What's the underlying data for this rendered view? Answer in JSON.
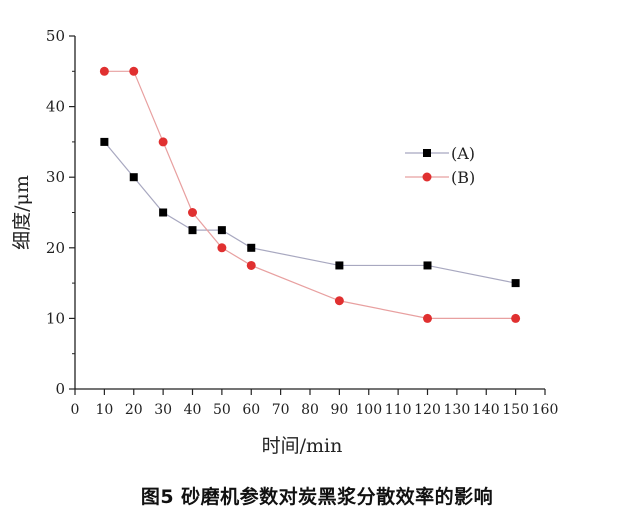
{
  "chart_data": {
    "type": "line",
    "xlabel": "时间/min",
    "ylabel": "细度/μm",
    "xlim": [
      0,
      160
    ],
    "ylim": [
      0,
      50
    ],
    "xticks": [
      0,
      10,
      20,
      30,
      40,
      50,
      60,
      70,
      80,
      90,
      100,
      110,
      120,
      130,
      140,
      150,
      160
    ],
    "yticks": [
      0,
      10,
      20,
      30,
      40,
      50
    ],
    "grid": false,
    "legend_position": "right",
    "series": [
      {
        "name": "(A)",
        "color": "#000000",
        "line_color": "#a8a8c0",
        "marker": "square",
        "x": [
          10,
          20,
          30,
          40,
          50,
          60,
          90,
          120,
          150
        ],
        "y": [
          35,
          30,
          25,
          22.5,
          22.5,
          20,
          17.5,
          17.5,
          15
        ]
      },
      {
        "name": "(B)",
        "color": "#e03030",
        "line_color": "#e8a0a0",
        "marker": "circle",
        "x": [
          10,
          20,
          30,
          40,
          50,
          60,
          90,
          120,
          150
        ],
        "y": [
          45,
          45,
          35,
          25,
          20,
          17.5,
          12.5,
          10,
          10
        ]
      }
    ]
  },
  "caption": "图5  砂磨机参数对炭黑浆分散效率的影响"
}
